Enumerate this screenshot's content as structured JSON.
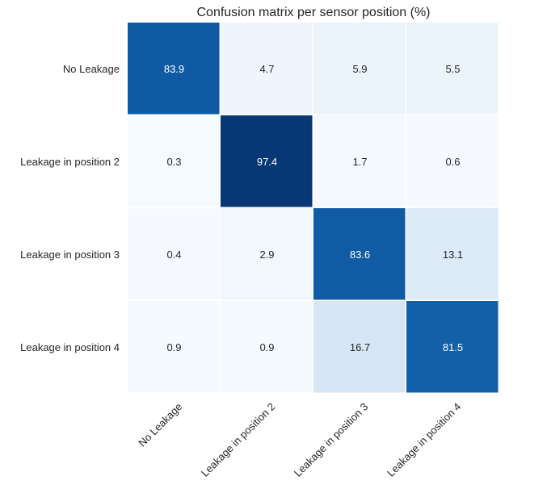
{
  "chart_data": {
    "type": "heatmap",
    "title": "Confusion matrix per sensor position (%)",
    "xlabel": "",
    "ylabel": "",
    "row_labels": [
      "No Leakage",
      "Leakage in position 2",
      "Leakage in position 3",
      "Leakage in position 4"
    ],
    "col_labels": [
      "No Leakage",
      "Leakage in position 2",
      "Leakage in position 3",
      "Leakage in position 4"
    ],
    "values": [
      [
        83.9,
        4.7,
        5.9,
        5.5
      ],
      [
        0.3,
        97.4,
        1.7,
        0.6
      ],
      [
        0.4,
        2.9,
        83.6,
        13.1
      ],
      [
        0.9,
        0.9,
        16.7,
        81.5
      ]
    ],
    "colormap": "Blues",
    "value_range": [
      0,
      100
    ],
    "grid": false,
    "legend": "none"
  }
}
